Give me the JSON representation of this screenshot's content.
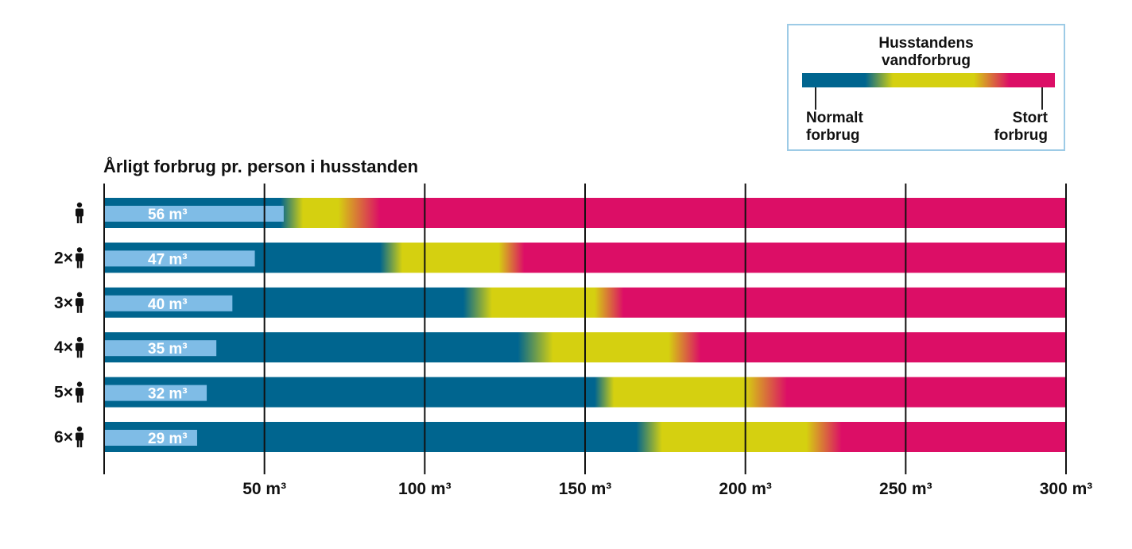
{
  "legend": {
    "title_line1": "Husstandens",
    "title_line2": "vandforbrug",
    "low_line1": "Normalt",
    "low_line2": "forbrug",
    "high_line1": "Stort",
    "high_line2": "forbrug"
  },
  "colors": {
    "normal": "#00658f",
    "medium": "#d5d010",
    "large": "#dc0e66",
    "person_bar": "#7fbce6",
    "grid": "#111111"
  },
  "chart_data": {
    "type": "bar",
    "title": "Årligt forbrug pr. person i husstanden",
    "xlim": [
      0,
      300
    ],
    "x_ticks": [
      "50 m³",
      "100 m³",
      "150 m³",
      "200 m³",
      "250 m³",
      "300 m³"
    ],
    "x_tick_values": [
      50,
      100,
      150,
      200,
      250,
      300
    ],
    "grid": true,
    "categories": [
      "",
      "2×",
      "3×",
      "4×",
      "5×",
      "6×"
    ],
    "household_persons": [
      1,
      2,
      3,
      4,
      5,
      6
    ],
    "series": [
      {
        "values": [
          56,
          47,
          40,
          35,
          32,
          29
        ],
        "value_labels": [
          "56 m³",
          "47 m³",
          "40 m³",
          "35 m³",
          "32 m³",
          "29 m³"
        ]
      }
    ],
    "household_bands": [
      {
        "normal_end": 55,
        "medium_start": 62,
        "medium_end": 73,
        "large_start": 86,
        "total": 300
      },
      {
        "normal_end": 86,
        "medium_start": 93,
        "medium_end": 123,
        "large_start": 131,
        "total": 300
      },
      {
        "normal_end": 112,
        "medium_start": 121,
        "medium_end": 153,
        "large_start": 162,
        "total": 300
      },
      {
        "normal_end": 129,
        "medium_start": 140,
        "medium_end": 176,
        "large_start": 186,
        "total": 300
      },
      {
        "normal_end": 153,
        "medium_start": 159,
        "medium_end": 200,
        "large_start": 213,
        "total": 300
      },
      {
        "normal_end": 166,
        "medium_start": 174,
        "medium_end": 219,
        "large_start": 230,
        "total": 300
      }
    ]
  }
}
